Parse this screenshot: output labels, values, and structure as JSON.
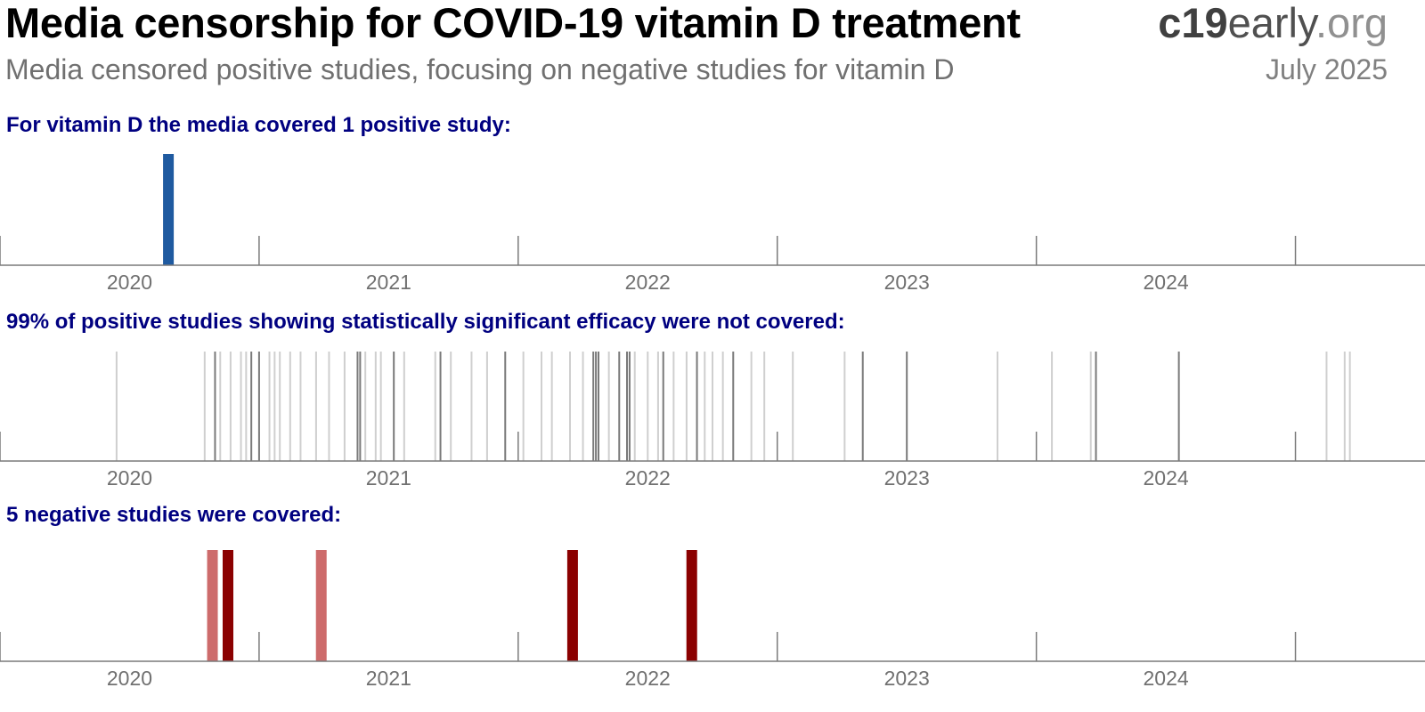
{
  "header": {
    "title": "Media censorship for COVID-19 vitamin D treatment",
    "brand": {
      "part1": "c19",
      "part2": "early",
      "part3": ".org"
    },
    "subtitle": "Media censored positive studies, focusing on negative studies for vitamin D",
    "date": "July 2025"
  },
  "colors": {
    "positive_covered": "#1f5aa0",
    "not_covered_light": "#cfcfcf",
    "not_covered_dark": "#7a7a7a",
    "negative_dark": "#8b0000",
    "negative_light": "#cd6b6b",
    "axis": "#7a7a7a",
    "panel_title": "#000080"
  },
  "chart_data": [
    {
      "type": "timeline",
      "title": "For vitamin D the media covered 1 positive study:",
      "x_ticks": [
        "2020",
        "2021",
        "2022",
        "2023",
        "2024"
      ],
      "xlim": [
        2019.5,
        2025.0
      ],
      "events": [
        {
          "x": 2020.15,
          "kind": "positive_covered"
        }
      ]
    },
    {
      "type": "timeline",
      "title": "99% of positive studies showing statistically significant efficacy were not covered:",
      "x_ticks": [
        "2020",
        "2021",
        "2022",
        "2023",
        "2024"
      ],
      "xlim": [
        2019.5,
        2025.0
      ],
      "events": [
        {
          "x": 2019.95,
          "tone": "light"
        },
        {
          "x": 2020.29,
          "tone": "light"
        },
        {
          "x": 2020.33,
          "tone": "dark"
        },
        {
          "x": 2020.35,
          "tone": "light"
        },
        {
          "x": 2020.39,
          "tone": "light"
        },
        {
          "x": 2020.43,
          "tone": "light"
        },
        {
          "x": 2020.45,
          "tone": "light"
        },
        {
          "x": 2020.47,
          "tone": "dark"
        },
        {
          "x": 2020.5,
          "tone": "dark"
        },
        {
          "x": 2020.54,
          "tone": "light"
        },
        {
          "x": 2020.56,
          "tone": "light"
        },
        {
          "x": 2020.58,
          "tone": "light"
        },
        {
          "x": 2020.62,
          "tone": "light"
        },
        {
          "x": 2020.66,
          "tone": "light"
        },
        {
          "x": 2020.72,
          "tone": "light"
        },
        {
          "x": 2020.77,
          "tone": "light"
        },
        {
          "x": 2020.83,
          "tone": "light"
        },
        {
          "x": 2020.88,
          "tone": "dark"
        },
        {
          "x": 2020.89,
          "tone": "dark"
        },
        {
          "x": 2020.91,
          "tone": "light"
        },
        {
          "x": 2020.95,
          "tone": "light"
        },
        {
          "x": 2020.97,
          "tone": "light"
        },
        {
          "x": 2021.02,
          "tone": "dark"
        },
        {
          "x": 2021.06,
          "tone": "light"
        },
        {
          "x": 2021.18,
          "tone": "light"
        },
        {
          "x": 2021.2,
          "tone": "dark"
        },
        {
          "x": 2021.24,
          "tone": "light"
        },
        {
          "x": 2021.32,
          "tone": "light"
        },
        {
          "x": 2021.38,
          "tone": "light"
        },
        {
          "x": 2021.45,
          "tone": "dark"
        },
        {
          "x": 2021.52,
          "tone": "light"
        },
        {
          "x": 2021.59,
          "tone": "light"
        },
        {
          "x": 2021.63,
          "tone": "light"
        },
        {
          "x": 2021.7,
          "tone": "light"
        },
        {
          "x": 2021.75,
          "tone": "light"
        },
        {
          "x": 2021.79,
          "tone": "dark"
        },
        {
          "x": 2021.8,
          "tone": "dark"
        },
        {
          "x": 2021.81,
          "tone": "dark"
        },
        {
          "x": 2021.85,
          "tone": "light"
        },
        {
          "x": 2021.89,
          "tone": "dark"
        },
        {
          "x": 2021.92,
          "tone": "dark"
        },
        {
          "x": 2021.93,
          "tone": "dark"
        },
        {
          "x": 2021.95,
          "tone": "light"
        },
        {
          "x": 2022.0,
          "tone": "light"
        },
        {
          "x": 2022.04,
          "tone": "light"
        },
        {
          "x": 2022.06,
          "tone": "dark"
        },
        {
          "x": 2022.1,
          "tone": "light"
        },
        {
          "x": 2022.15,
          "tone": "light"
        },
        {
          "x": 2022.19,
          "tone": "dark"
        },
        {
          "x": 2022.22,
          "tone": "light"
        },
        {
          "x": 2022.25,
          "tone": "light"
        },
        {
          "x": 2022.29,
          "tone": "light"
        },
        {
          "x": 2022.33,
          "tone": "dark"
        },
        {
          "x": 2022.4,
          "tone": "light"
        },
        {
          "x": 2022.45,
          "tone": "light"
        },
        {
          "x": 2022.56,
          "tone": "light"
        },
        {
          "x": 2022.76,
          "tone": "light"
        },
        {
          "x": 2022.83,
          "tone": "dark"
        },
        {
          "x": 2023.0,
          "tone": "dark"
        },
        {
          "x": 2023.35,
          "tone": "light"
        },
        {
          "x": 2023.56,
          "tone": "light"
        },
        {
          "x": 2023.71,
          "tone": "light"
        },
        {
          "x": 2023.73,
          "tone": "dark"
        },
        {
          "x": 2024.05,
          "tone": "dark"
        },
        {
          "x": 2024.62,
          "tone": "light"
        },
        {
          "x": 2024.69,
          "tone": "light"
        },
        {
          "x": 2024.71,
          "tone": "light"
        }
      ]
    },
    {
      "type": "timeline",
      "title": "5 negative studies were covered:",
      "x_ticks": [
        "2020",
        "2021",
        "2022",
        "2023",
        "2024"
      ],
      "xlim": [
        2019.5,
        2025.0
      ],
      "events": [
        {
          "x": 2020.32,
          "tone": "light"
        },
        {
          "x": 2020.38,
          "tone": "dark"
        },
        {
          "x": 2020.74,
          "tone": "light"
        },
        {
          "x": 2021.71,
          "tone": "dark"
        },
        {
          "x": 2022.17,
          "tone": "dark"
        }
      ]
    }
  ]
}
